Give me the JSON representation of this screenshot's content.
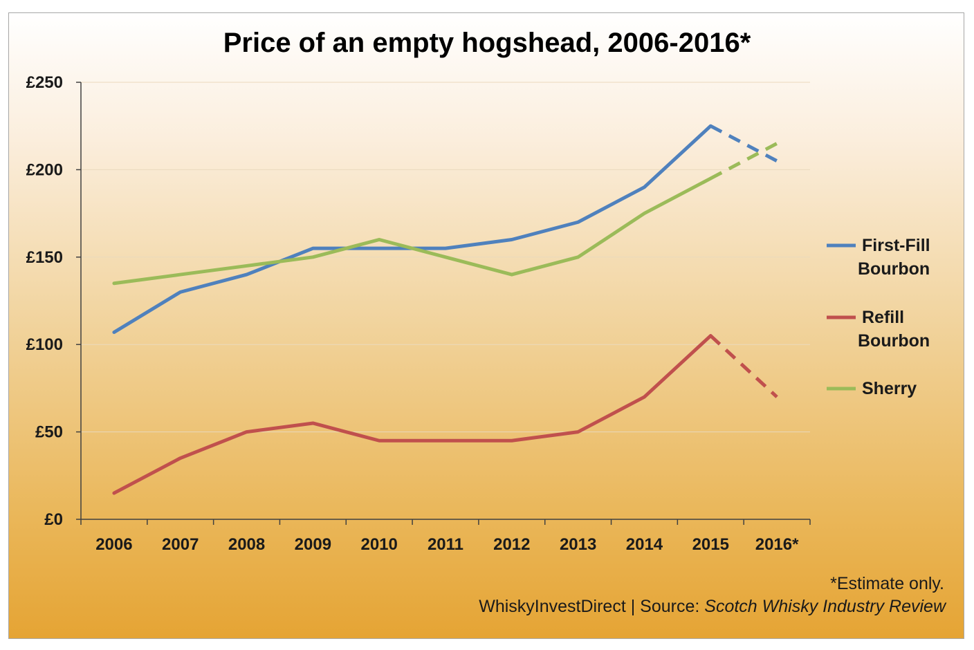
{
  "chart_data": {
    "type": "line",
    "title": "Price of an empty hogshead, 2006-2016*",
    "xlabel": "",
    "ylabel": "",
    "categories": [
      "2006",
      "2007",
      "2008",
      "2009",
      "2010",
      "2011",
      "2012",
      "2013",
      "2014",
      "2015",
      "2016*"
    ],
    "y_ticks": [
      "£0",
      "£50",
      "£100",
      "£150",
      "£200",
      "£250"
    ],
    "ylim": [
      0,
      250
    ],
    "grid": true,
    "legend_position": "right",
    "estimate_from_category": "2015",
    "series": [
      {
        "name_lines": [
          "First-Fill",
          "Bourbon"
        ],
        "color": "#4f81bd",
        "values": [
          107,
          130,
          140,
          155,
          155,
          155,
          160,
          170,
          190,
          225,
          205
        ]
      },
      {
        "name_lines": [
          "Refill",
          "Bourbon"
        ],
        "color": "#c0504d",
        "values": [
          15,
          35,
          50,
          55,
          45,
          45,
          45,
          50,
          70,
          105,
          70
        ]
      },
      {
        "name_lines": [
          "Sherry"
        ],
        "color": "#9bbb59",
        "values": [
          135,
          140,
          145,
          150,
          160,
          150,
          140,
          150,
          175,
          195,
          215
        ]
      }
    ]
  },
  "footnote": "*Estimate only.",
  "source_prefix": "WhiskyInvestDirect | Source: ",
  "source_title": "Scotch Whisky Industry Review"
}
